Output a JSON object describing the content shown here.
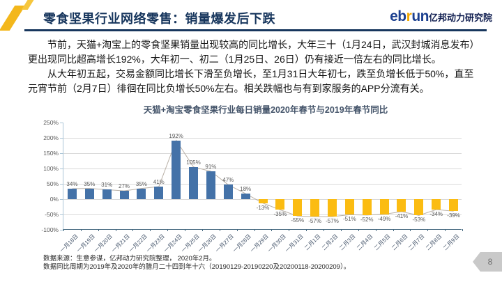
{
  "header": {
    "title": "零食坚果行业网络零售：销量爆发后下跌",
    "logo": {
      "part1": "eb",
      "part2": "r",
      "part3": "un",
      "suffix": "亿邦动力研究院"
    }
  },
  "body": {
    "paragraph1": "节前，天猫+淘宝上的零食坚果销量出现较高的同比增长，大年三十（1月24日，武汉封城消息发布）更出现同比超高增长192%，大年初一、初二（1月25日、26日）仍有接近一倍左右的同比增长。",
    "paragraph2": "从大年初五起，交易金额同比增长下滑至负增长，至1月31日大年初七，跌至负增长低于50%，直至元宵节前（2月7日）徘徊在同比负增长50%左右。相关跌幅也与有到家服务的APP分流有关。"
  },
  "chart_data": {
    "type": "bar",
    "title": "天猫+淘宝零食坚果行业每日销量2020年春节与2019年春节同比",
    "categories": [
      "一月18日",
      "一月19日",
      "一月20日",
      "一月21日",
      "一月22日",
      "一月23日",
      "一月24日",
      "一月25日",
      "一月26日",
      "一月27日",
      "一月28日",
      "一月29日",
      "一月30日",
      "一月31日",
      "二月1日",
      "二月2日",
      "二月3日",
      "二月4日",
      "二月5日",
      "二月6日",
      "二月7日",
      "二月8日",
      "二月9日"
    ],
    "values": [
      34,
      35,
      31,
      27,
      35,
      41,
      192,
      105,
      91,
      47,
      18,
      -13,
      -35,
      -55,
      -57,
      -57,
      -51,
      -52,
      -49,
      -41,
      -53,
      -34,
      -39
    ],
    "value_labels": [
      "34%",
      "35%",
      "31%",
      "27%",
      "35%",
      "41%",
      "192%",
      "105%",
      "91%",
      "47%",
      "18%",
      "-13%",
      "-35%",
      "-55%",
      "-57%",
      "-57%",
      "-51%",
      "-52%",
      "-49%",
      "-41%",
      "-53%",
      "-34%",
      "-39%"
    ],
    "xlabel": "",
    "ylabel": "",
    "ylim": [
      -100,
      250
    ],
    "yticks": [
      "250%",
      "200%",
      "150%",
      "100%",
      "50%",
      "0%",
      "-50%",
      "-100%"
    ],
    "grid": true,
    "legend": "none",
    "has_line_overlay": true,
    "colors": {
      "positive_bar": "#4472a8",
      "negative_bar": "#fbbc12",
      "overlay_line": "#b9b0a6"
    }
  },
  "footnote": {
    "line1": "数据来源：生意参谋，亿邦动力研究院整理， 2020年2月。",
    "line2": "数据同比周期为2019年及2020年的腊月二十四到年十六（20190129-20190220及20200118-20200209）。"
  },
  "footer": {
    "page_number": "8"
  }
}
